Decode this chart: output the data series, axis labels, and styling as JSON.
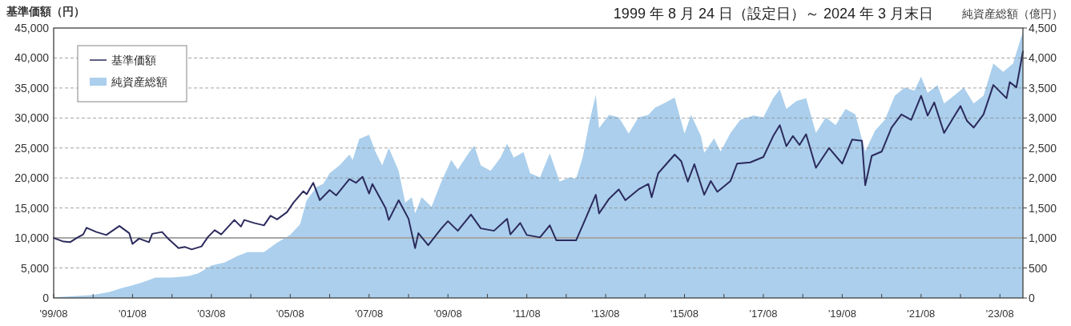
{
  "chart_data": {
    "type": "line",
    "title": "1999 年 8 月 24 日（設定日）～ 2024 年 3 月末日",
    "ylabel": "基準価額（円）",
    "y2label": "純資産総額（億円）",
    "xlim": [
      "1999-08",
      "2024-03"
    ],
    "xticks": [
      {
        "value": "1999-08",
        "label": "'99/08"
      },
      {
        "value": "2000-08",
        "label": null
      },
      {
        "value": "2001-08",
        "label": "'01/08"
      },
      {
        "value": "2002-08",
        "label": null
      },
      {
        "value": "2003-08",
        "label": "'03/08"
      },
      {
        "value": "2004-08",
        "label": null
      },
      {
        "value": "2005-08",
        "label": "'05/08"
      },
      {
        "value": "2006-08",
        "label": null
      },
      {
        "value": "2007-08",
        "label": "'07/08"
      },
      {
        "value": "2008-08",
        "label": null
      },
      {
        "value": "2009-08",
        "label": "'09/08"
      },
      {
        "value": "2010-08",
        "label": null
      },
      {
        "value": "2011-08",
        "label": "'11/08"
      },
      {
        "value": "2012-08",
        "label": null
      },
      {
        "value": "2013-08",
        "label": "'13/08"
      },
      {
        "value": "2014-08",
        "label": null
      },
      {
        "value": "2015-08",
        "label": "'15/08"
      },
      {
        "value": "2016-08",
        "label": null
      },
      {
        "value": "2017-08",
        "label": "'17/08"
      },
      {
        "value": "2018-08",
        "label": null
      },
      {
        "value": "2019-08",
        "label": "'19/08"
      },
      {
        "value": "2020-08",
        "label": null
      },
      {
        "value": "2021-08",
        "label": "'21/08"
      },
      {
        "value": "2022-08",
        "label": null
      },
      {
        "value": "2023-08",
        "label": "'23/08"
      }
    ],
    "ylim": [
      0,
      45000
    ],
    "yticks": [
      {
        "value": 0,
        "label": "0"
      },
      {
        "value": 5000,
        "label": "5,000"
      },
      {
        "value": 10000,
        "label": "10,000"
      },
      {
        "value": 15000,
        "label": "15,000"
      },
      {
        "value": 20000,
        "label": "20,000"
      },
      {
        "value": 25000,
        "label": "25,000"
      },
      {
        "value": 30000,
        "label": "30,000"
      },
      {
        "value": 35000,
        "label": "35,000"
      },
      {
        "value": 40000,
        "label": "40,000"
      },
      {
        "value": 45000,
        "label": "45,000"
      }
    ],
    "y2lim": [
      0,
      4500
    ],
    "y2ticks": [
      {
        "value": 0,
        "label": "0"
      },
      {
        "value": 500,
        "label": "500"
      },
      {
        "value": 1000,
        "label": "1,000"
      },
      {
        "value": 1500,
        "label": "1,500"
      },
      {
        "value": 2000,
        "label": "2,000"
      },
      {
        "value": 2500,
        "label": "2,500"
      },
      {
        "value": 3000,
        "label": "3,000"
      },
      {
        "value": 3500,
        "label": "3,500"
      },
      {
        "value": 4000,
        "label": "4,000"
      },
      {
        "value": 4500,
        "label": "4,500"
      }
    ],
    "grid": "y",
    "legend": "top left",
    "ref_lines": [
      {
        "axis": "y",
        "value": 10000,
        "color": "#a6a6a6",
        "line_style": "solid"
      }
    ],
    "series": [
      {
        "name": "純資産総額",
        "type": "area",
        "axis": "y2",
        "color": "#abcfec",
        "x": [
          "1999-08",
          "2000-08",
          "2001-01",
          "2001-05",
          "2001-08",
          "2001-11",
          "2002-03",
          "2002-08",
          "2003-01",
          "2003-04",
          "2003-08",
          "2003-12",
          "2004-04",
          "2004-07",
          "2004-12",
          "2005-04",
          "2005-08",
          "2005-11",
          "2006-01",
          "2006-04",
          "2006-06",
          "2006-08",
          "2006-11",
          "2007-02",
          "2007-03",
          "2007-05",
          "2007-08",
          "2007-10",
          "2007-12",
          "2008-02",
          "2008-05",
          "2008-07",
          "2008-09",
          "2008-10",
          "2008-12",
          "2009-03",
          "2009-06",
          "2009-09",
          "2009-11",
          "2010-02",
          "2010-04",
          "2010-06",
          "2010-09",
          "2010-12",
          "2011-02",
          "2011-04",
          "2011-07",
          "2011-09",
          "2011-12",
          "2012-03",
          "2012-06",
          "2012-09",
          "2012-11",
          "2013-01",
          "2013-03",
          "2013-05",
          "2013-06",
          "2013-09",
          "2013-12",
          "2014-03",
          "2014-06",
          "2014-09",
          "2014-11",
          "2015-02",
          "2015-05",
          "2015-08",
          "2015-10",
          "2016-01",
          "2016-02",
          "2016-05",
          "2016-07",
          "2016-10",
          "2017-01",
          "2017-05",
          "2017-08",
          "2017-11",
          "2018-01",
          "2018-03",
          "2018-06",
          "2018-09",
          "2018-12",
          "2019-03",
          "2019-06",
          "2019-09",
          "2019-12",
          "2020-03",
          "2020-06",
          "2020-09",
          "2020-12",
          "2021-03",
          "2021-06",
          "2021-08",
          "2021-10",
          "2022-01",
          "2022-03",
          "2022-06",
          "2022-09",
          "2022-12",
          "2023-03",
          "2023-06",
          "2023-09",
          "2023-12",
          "2024-03"
        ],
        "values": [
          10,
          50,
          100,
          170,
          210,
          260,
          340,
          340,
          365,
          410,
          540,
          590,
          700,
          765,
          765,
          920,
          1050,
          1230,
          1630,
          1850,
          1900,
          2080,
          2210,
          2390,
          2300,
          2650,
          2720,
          2430,
          2210,
          2500,
          2120,
          1590,
          1680,
          1410,
          1680,
          1520,
          1940,
          2300,
          2140,
          2390,
          2540,
          2210,
          2120,
          2340,
          2570,
          2340,
          2430,
          2080,
          2010,
          2410,
          1940,
          2010,
          1990,
          2340,
          2920,
          3390,
          2830,
          3050,
          3010,
          2740,
          3010,
          3050,
          3170,
          3250,
          3340,
          2740,
          3050,
          2700,
          2420,
          2660,
          2440,
          2750,
          2970,
          3040,
          3010,
          3330,
          3480,
          3150,
          3280,
          3330,
          2750,
          3010,
          2880,
          3150,
          3060,
          2440,
          2790,
          2970,
          3370,
          3510,
          3460,
          3690,
          3420,
          3550,
          3240,
          3370,
          3510,
          3240,
          3370,
          3910,
          3770,
          3910,
          4440
        ]
      },
      {
        "name": "基準価額",
        "color": "#2b2a5c",
        "x": [
          "1999-08",
          "1999-11",
          "2000-01",
          "2000-03",
          "2000-05",
          "2000-06",
          "2000-09",
          "2000-12",
          "2001-04",
          "2001-07",
          "2001-08",
          "2001-10",
          "2002-01",
          "2002-02",
          "2002-05",
          "2002-07",
          "2002-10",
          "2002-12",
          "2003-02",
          "2003-05",
          "2003-07",
          "2003-09",
          "2003-11",
          "2004-03",
          "2004-05",
          "2004-06",
          "2004-09",
          "2004-12",
          "2005-02",
          "2005-04",
          "2005-07",
          "2005-09",
          "2005-12",
          "2006-01",
          "2006-03",
          "2006-05",
          "2006-08",
          "2006-10",
          "2007-02",
          "2007-04",
          "2007-06",
          "2007-08",
          "2007-09",
          "2008-01",
          "2008-02",
          "2008-05",
          "2008-08",
          "2008-10",
          "2008-11",
          "2009-02",
          "2009-06",
          "2009-08",
          "2009-11",
          "2010-03",
          "2010-06",
          "2010-10",
          "2011-02",
          "2011-03",
          "2011-06",
          "2011-08",
          "2011-12",
          "2012-03",
          "2012-05",
          "2012-11",
          "2013-01",
          "2013-05",
          "2013-06",
          "2013-09",
          "2013-12",
          "2014-02",
          "2014-06",
          "2014-09",
          "2014-10",
          "2014-12",
          "2015-05",
          "2015-07",
          "2015-09",
          "2015-11",
          "2016-02",
          "2016-04",
          "2016-06",
          "2016-10",
          "2016-12",
          "2017-04",
          "2017-08",
          "2017-11",
          "2018-01",
          "2018-03",
          "2018-05",
          "2018-07",
          "2018-09",
          "2018-12",
          "2019-04",
          "2019-08",
          "2019-11",
          "2020-02",
          "2020-03",
          "2020-05",
          "2020-08",
          "2020-11",
          "2021-02",
          "2021-05",
          "2021-08",
          "2021-10",
          "2021-12",
          "2022-03",
          "2022-06",
          "2022-08",
          "2022-10",
          "2022-12",
          "2023-03",
          "2023-06",
          "2023-10",
          "2023-11",
          "2024-01",
          "2024-03"
        ],
        "values": [
          10000,
          9400,
          9300,
          10000,
          10600,
          11700,
          11000,
          10500,
          12000,
          10800,
          9000,
          9900,
          9300,
          10700,
          11000,
          9800,
          8300,
          8500,
          8100,
          8600,
          10200,
          11300,
          10600,
          13000,
          11900,
          13000,
          12500,
          12100,
          13700,
          13100,
          14300,
          15900,
          17800,
          17300,
          19200,
          16300,
          18000,
          17100,
          19800,
          19200,
          20200,
          17400,
          19000,
          15000,
          13000,
          16300,
          13200,
          8300,
          10800,
          8800,
          11600,
          12800,
          11200,
          13900,
          11600,
          11200,
          13200,
          10600,
          12500,
          10500,
          10100,
          12100,
          9600,
          9600,
          12100,
          17200,
          14100,
          16500,
          18100,
          16300,
          18100,
          19000,
          16800,
          20800,
          23900,
          22800,
          19400,
          22300,
          17200,
          19500,
          17700,
          19500,
          22400,
          22600,
          23500,
          27000,
          28800,
          25300,
          27000,
          25500,
          27300,
          21700,
          25000,
          22400,
          26400,
          26200,
          18800,
          23700,
          24400,
          28400,
          30600,
          29700,
          33700,
          30400,
          32600,
          27500,
          30200,
          32000,
          29500,
          28400,
          30600,
          35500,
          33300,
          36000,
          35100,
          41100
        ]
      }
    ]
  }
}
